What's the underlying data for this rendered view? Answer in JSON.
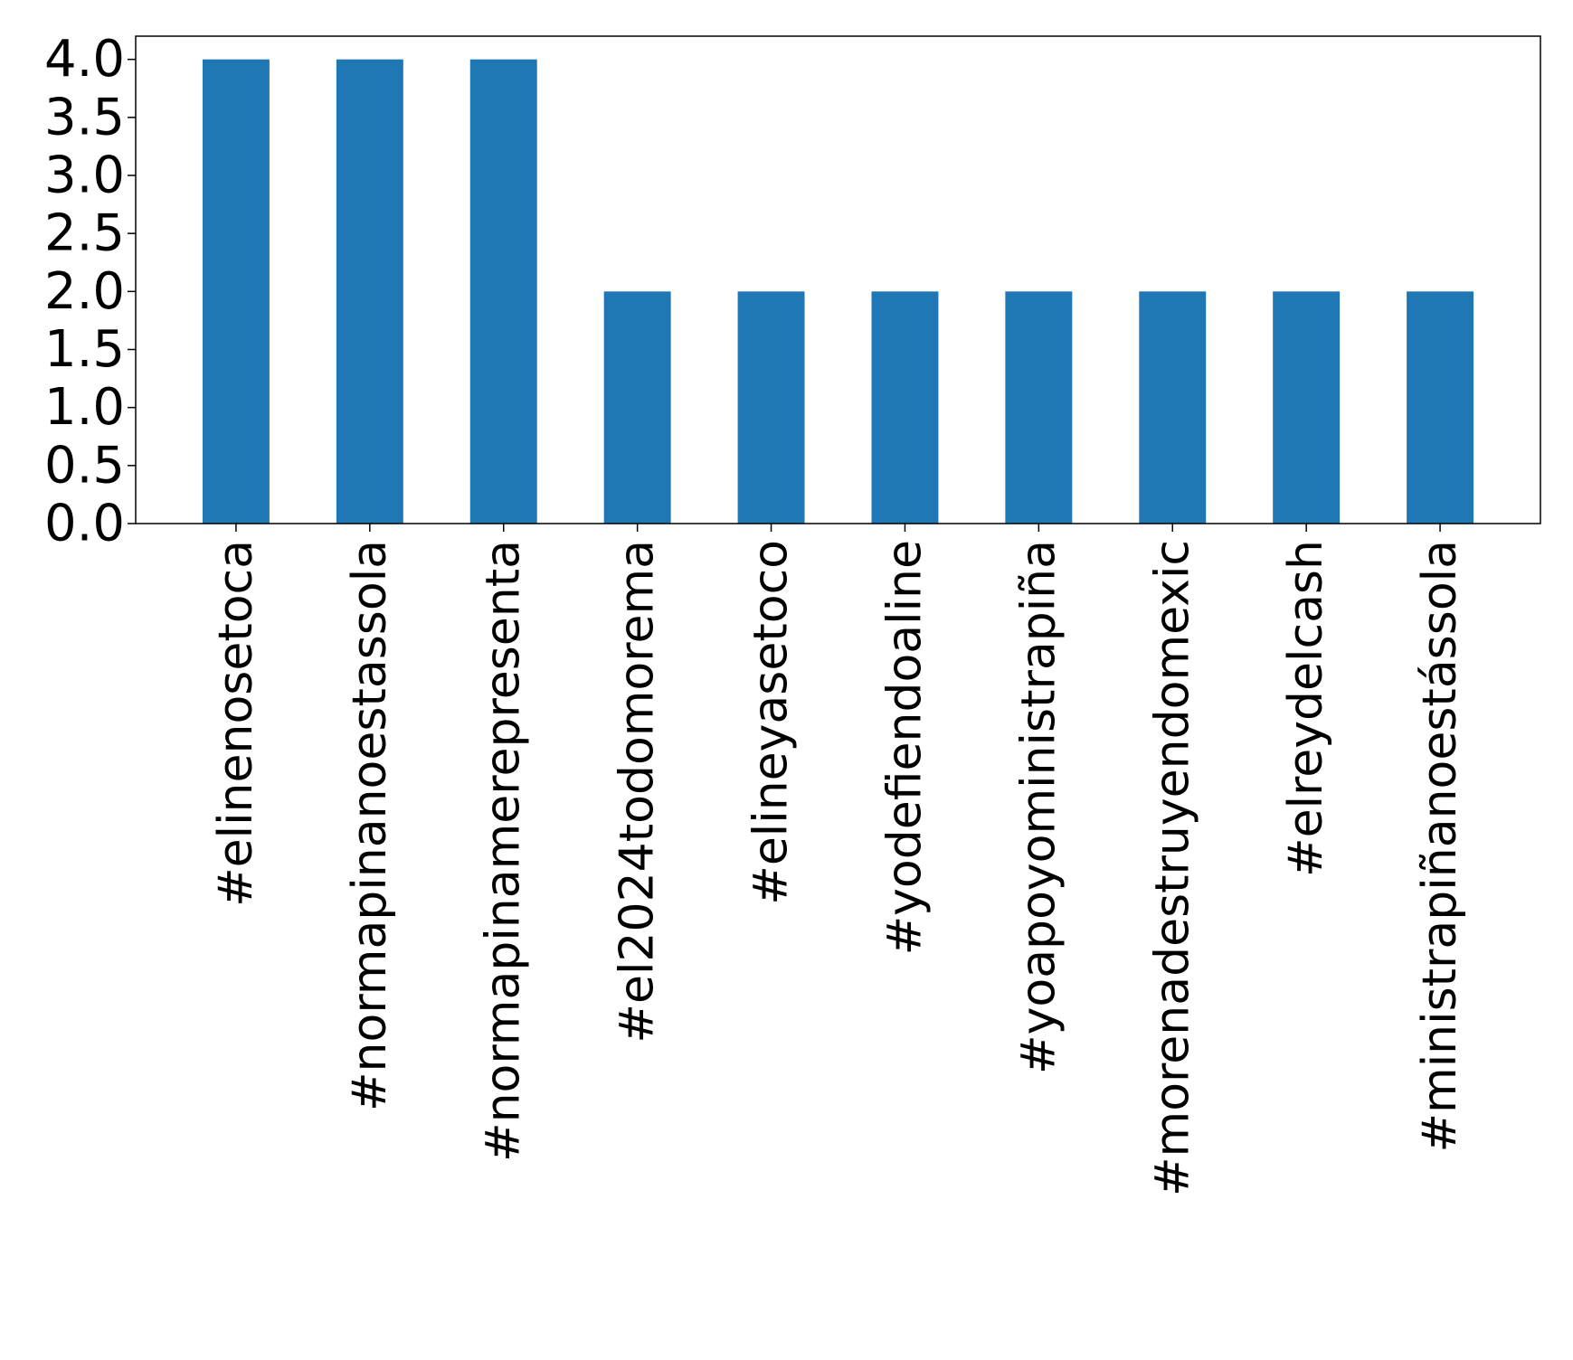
{
  "chart_data": {
    "type": "bar",
    "title": "",
    "xlabel": "",
    "ylabel": "",
    "categories": [
      "#elinenosetoca",
      "#normapinanoestassola",
      "#normapinamerepresenta",
      "#el2024todomorema",
      "#elineyasetoco",
      "#yodefiendoaline",
      "#yoapoyoministrapiña",
      "#morenadestruyendomexic",
      "#elreydelcash",
      "#ministrapiñanoestássola"
    ],
    "values": [
      4,
      4,
      4,
      2,
      2,
      2,
      2,
      2,
      2,
      2
    ],
    "ylim": [
      0,
      4.2
    ],
    "yticks": [
      "0.0",
      "0.5",
      "1.0",
      "1.5",
      "2.0",
      "2.5",
      "3.0",
      "3.5",
      "4.0"
    ],
    "grid": false,
    "legend": "none",
    "colors": {
      "bar": "#1f77b4",
      "axis": "#000000",
      "background": "#ffffff"
    }
  }
}
